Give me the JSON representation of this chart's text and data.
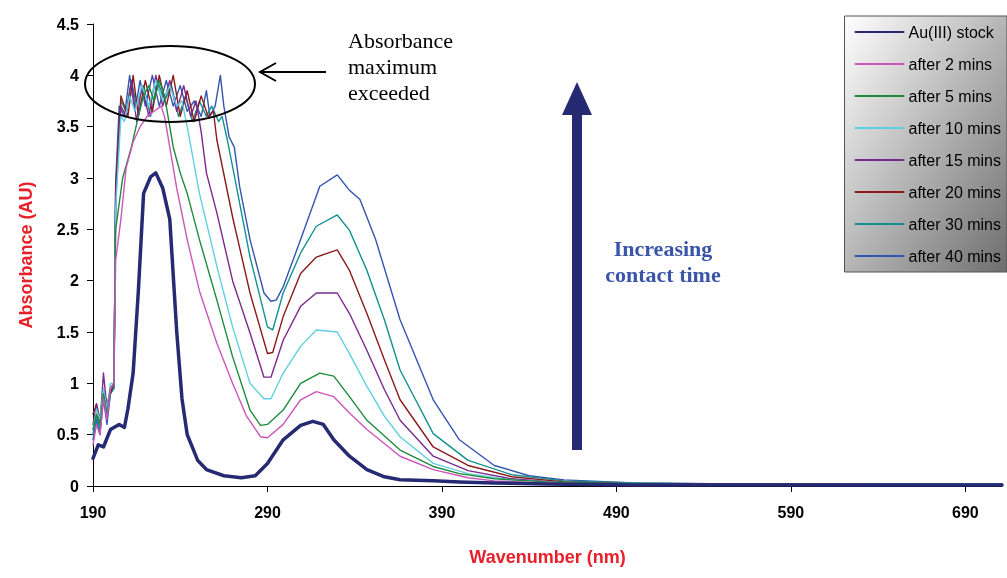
{
  "chart_data": {
    "type": "line",
    "xlabel": "Wavenumber (nm)",
    "ylabel": "Absorbance (AU)",
    "xlim": [
      190,
      711
    ],
    "xticks": [
      190,
      290,
      390,
      490,
      590,
      690
    ],
    "ylim": [
      0,
      4.5
    ],
    "yticks": [
      0,
      0.5,
      1,
      1.5,
      2,
      2.5,
      3,
      3.5,
      4,
      4.5
    ],
    "grid": false,
    "legend": "top right",
    "marker": "none",
    "line_style": "solid",
    "annotations": [
      "Absorbance maximum exceeded",
      "Increasing contact time"
    ],
    "series": [
      {
        "name": "Au(III) stock",
        "color": "#262a73",
        "x": [
          190,
          193,
          196,
          200,
          205,
          208,
          210,
          213,
          216,
          219,
          223,
          226,
          230,
          234,
          238,
          241,
          244,
          250,
          255,
          265,
          275,
          283,
          290,
          299,
          309,
          316,
          322,
          328,
          337,
          347,
          357,
          366,
          385,
          400,
          420,
          450,
          500,
          711
        ],
        "values": [
          0.27,
          0.4,
          0.38,
          0.55,
          0.6,
          0.57,
          0.75,
          1.1,
          1.9,
          2.85,
          3.01,
          3.05,
          2.9,
          2.6,
          1.5,
          0.85,
          0.5,
          0.25,
          0.16,
          0.1,
          0.08,
          0.1,
          0.22,
          0.45,
          0.59,
          0.63,
          0.6,
          0.45,
          0.29,
          0.16,
          0.09,
          0.06,
          0.05,
          0.04,
          0.03,
          0.02,
          0.01,
          0.01
        ]
      },
      {
        "name": "after 2 mins",
        "color": "#cc55bb",
        "x": [
          190,
          192,
          194,
          196,
          198,
          200,
          202,
          203,
          206,
          209,
          213,
          217,
          221,
          225,
          229,
          231,
          234,
          238,
          244,
          251,
          261,
          270,
          278,
          286,
          290,
          299,
          309,
          318,
          328,
          337,
          347,
          366,
          385,
          405,
          420,
          450,
          500,
          711
        ],
        "values": [
          0.4,
          0.6,
          0.5,
          0.85,
          0.65,
          0.95,
          1.0,
          2.2,
          2.6,
          3.1,
          3.35,
          3.5,
          3.6,
          3.65,
          3.7,
          3.6,
          3.3,
          2.9,
          2.4,
          1.9,
          1.39,
          1.0,
          0.68,
          0.48,
          0.47,
          0.6,
          0.84,
          0.92,
          0.87,
          0.71,
          0.55,
          0.29,
          0.16,
          0.08,
          0.05,
          0.03,
          0.01,
          0.01
        ]
      },
      {
        "name": "after 5 mins",
        "color": "#1e8a3c",
        "x": [
          190,
          192,
          194,
          196,
          198,
          200,
          202,
          203,
          207,
          212,
          216,
          219,
          222,
          225,
          228,
          231,
          233,
          236,
          240,
          244,
          251,
          261,
          270,
          280,
          286,
          290,
          299,
          309,
          320,
          328,
          337,
          347,
          366,
          385,
          400,
          420,
          450,
          500,
          550,
          711
        ],
        "values": [
          0.55,
          0.7,
          0.6,
          0.9,
          0.7,
          0.95,
          1.0,
          2.5,
          3.0,
          3.3,
          3.6,
          3.8,
          3.9,
          3.75,
          3.95,
          3.8,
          3.6,
          3.3,
          3.05,
          2.85,
          2.4,
          1.81,
          1.26,
          0.74,
          0.59,
          0.6,
          0.74,
          1.0,
          1.1,
          1.07,
          0.87,
          0.64,
          0.35,
          0.19,
          0.12,
          0.07,
          0.04,
          0.02,
          0.01,
          0.01
        ]
      },
      {
        "name": "after 10 mins",
        "color": "#5fd0e0",
        "x": [
          190,
          192,
          194,
          196,
          198,
          200,
          202,
          203,
          206,
          208,
          211,
          214,
          218,
          222,
          226,
          230,
          234,
          238,
          241,
          244,
          251,
          261,
          270,
          280,
          288,
          292,
          299,
          309,
          318,
          330,
          337,
          347,
          357,
          366,
          385,
          405,
          430,
          460
        ],
        "values": [
          0.55,
          0.75,
          0.65,
          0.95,
          0.75,
          1.0,
          1.0,
          2.7,
          3.6,
          3.55,
          3.8,
          3.65,
          3.9,
          3.7,
          3.95,
          3.75,
          3.9,
          3.7,
          3.75,
          3.5,
          2.85,
          2.14,
          1.55,
          1.0,
          0.85,
          0.85,
          1.1,
          1.36,
          1.52,
          1.5,
          1.29,
          0.97,
          0.68,
          0.48,
          0.22,
          0.12,
          0.06,
          0.03
        ]
      },
      {
        "name": "after 15 mins",
        "color": "#7a2a8a",
        "x": [
          190,
          192,
          194,
          196,
          198,
          200,
          202,
          203,
          206,
          209,
          212,
          215,
          218,
          222,
          226,
          230,
          234,
          238,
          242,
          246,
          249,
          252,
          255,
          261,
          270,
          280,
          288,
          292,
          299,
          309,
          318,
          330,
          337,
          347,
          357,
          366,
          385,
          405,
          430,
          460,
          500,
          711
        ],
        "values": [
          0.6,
          0.8,
          0.6,
          1.1,
          0.75,
          0.95,
          1.0,
          2.8,
          3.7,
          3.6,
          3.95,
          3.55,
          3.9,
          3.6,
          4.0,
          3.7,
          3.95,
          3.65,
          3.9,
          3.6,
          3.75,
          3.45,
          3.05,
          2.66,
          2.0,
          1.49,
          1.06,
          1.06,
          1.42,
          1.75,
          1.88,
          1.88,
          1.68,
          1.32,
          0.94,
          0.64,
          0.29,
          0.15,
          0.07,
          0.03,
          0.02,
          0.01
        ]
      },
      {
        "name": "after 20 mins",
        "color": "#8b1a1a",
        "x": [
          190,
          192,
          194,
          196,
          198,
          200,
          202,
          203,
          206,
          210,
          213,
          216,
          220,
          224,
          228,
          232,
          236,
          240,
          244,
          248,
          252,
          256,
          259,
          261,
          270,
          280,
          290,
          293,
          299,
          309,
          318,
          330,
          337,
          347,
          357,
          366,
          385,
          405,
          430,
          460,
          500,
          711
        ],
        "values": [
          0.7,
          0.8,
          0.65,
          0.95,
          0.8,
          0.9,
          1.0,
          2.9,
          3.8,
          3.6,
          4.0,
          3.6,
          3.95,
          3.65,
          4.0,
          3.7,
          4.0,
          3.6,
          3.85,
          3.55,
          3.8,
          3.6,
          3.65,
          3.37,
          2.62,
          1.88,
          1.29,
          1.3,
          1.65,
          2.07,
          2.23,
          2.3,
          2.1,
          1.68,
          1.23,
          0.84,
          0.38,
          0.2,
          0.09,
          0.04,
          0.02,
          0.01
        ]
      },
      {
        "name": "after 30 mins",
        "color": "#139090",
        "x": [
          190,
          192,
          194,
          196,
          198,
          200,
          202,
          203,
          206,
          209,
          212,
          215,
          219,
          223,
          227,
          231,
          235,
          239,
          243,
          247,
          251,
          255,
          258,
          262,
          264,
          267,
          270,
          280,
          290,
          293,
          299,
          309,
          318,
          330,
          337,
          347,
          357,
          366,
          385,
          405,
          430,
          460,
          500,
          550,
          711
        ],
        "values": [
          0.5,
          0.7,
          0.55,
          0.9,
          0.7,
          0.9,
          0.95,
          2.9,
          3.75,
          3.65,
          3.95,
          3.7,
          3.9,
          3.6,
          3.95,
          3.75,
          3.9,
          3.6,
          3.8,
          3.55,
          3.75,
          3.6,
          3.7,
          3.55,
          3.6,
          3.37,
          3.11,
          2.23,
          1.55,
          1.52,
          1.88,
          2.27,
          2.53,
          2.64,
          2.49,
          2.1,
          1.62,
          1.13,
          0.51,
          0.25,
          0.11,
          0.05,
          0.03,
          0.02,
          0.02
        ]
      },
      {
        "name": "after 40 mins",
        "color": "#3354b0",
        "x": [
          190,
          192,
          194,
          196,
          198,
          200,
          202,
          203,
          205,
          208,
          211,
          214,
          217,
          220,
          224,
          228,
          232,
          236,
          240,
          244,
          248,
          252,
          255,
          257,
          260,
          263,
          265,
          268,
          271,
          274,
          280,
          288,
          292,
          295,
          299,
          309,
          320,
          330,
          337,
          343,
          352,
          366,
          385,
          400,
          420,
          440,
          460,
          500,
          560,
          711
        ],
        "values": [
          0.45,
          0.65,
          0.5,
          0.85,
          0.6,
          0.9,
          0.95,
          2.95,
          3.7,
          3.6,
          4.0,
          3.65,
          3.95,
          3.7,
          4.0,
          3.7,
          3.95,
          3.7,
          3.9,
          3.65,
          3.75,
          3.6,
          3.85,
          3.6,
          3.7,
          4.0,
          3.7,
          3.4,
          3.3,
          2.92,
          2.4,
          1.88,
          1.8,
          1.81,
          1.94,
          2.4,
          2.92,
          3.03,
          2.88,
          2.79,
          2.4,
          1.62,
          0.84,
          0.45,
          0.2,
          0.1,
          0.06,
          0.03,
          0.02,
          0.02
        ]
      }
    ]
  }
}
